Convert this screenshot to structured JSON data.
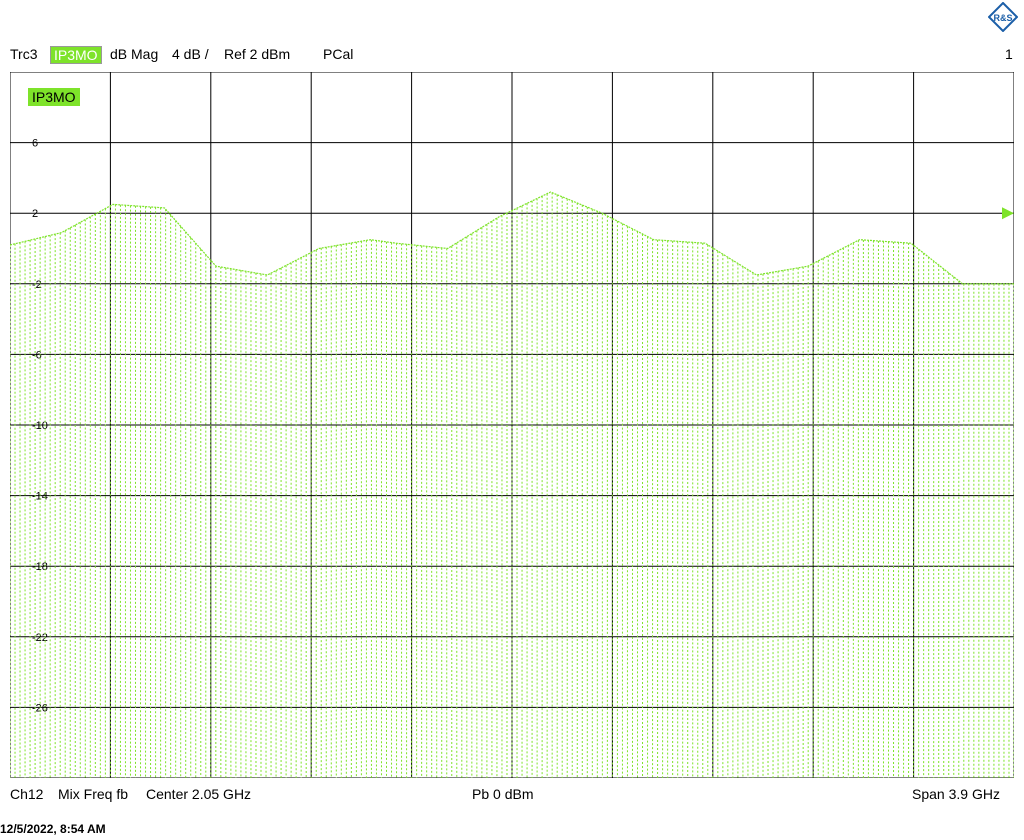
{
  "header": {
    "trace": "Trc3",
    "trace_name": "IP3MO",
    "format": "dB Mag",
    "scale": "4 dB /",
    "ref": "Ref 2 dBm",
    "cal": "PCal",
    "channel_index": "1"
  },
  "plot": {
    "trace_label": "IP3MO"
  },
  "footer": {
    "channel": "Ch12",
    "sweep": "Mix Freq fb",
    "center": "Center  2.05 GHz",
    "power": "Pb   0 dBm",
    "span": "Span  3.9 GHz"
  },
  "timestamp": "12/5/2022, 8:54 AM",
  "colors": {
    "trace": "#7ee32a",
    "grid": "#000000",
    "background": "#ffffff"
  },
  "chart_data": {
    "type": "line",
    "xlabel": "",
    "ylabel": "",
    "xlim": [
      0.1,
      4.0
    ],
    "ylim": [
      -30,
      10
    ],
    "y_ticks": [
      6,
      2,
      -2,
      -6,
      -10,
      -14,
      -18,
      -22,
      -26
    ],
    "ref_level": 2,
    "series": [
      {
        "x": [
          0.1,
          0.3,
          0.5,
          0.7,
          0.9,
          1.1,
          1.3,
          1.5,
          1.6,
          1.8,
          2.0,
          2.2,
          2.4,
          2.6,
          2.8,
          3.0,
          3.2,
          3.4,
          3.6,
          3.8,
          4.0
        ],
        "values": [
          0.2,
          0.9,
          2.5,
          2.3,
          -1.0,
          -1.5,
          0.0,
          0.5,
          0.3,
          0.0,
          1.8,
          3.2,
          2.0,
          0.5,
          0.3,
          -1.5,
          -1.0,
          0.5,
          0.3,
          -2.0,
          -2.0
        ]
      }
    ]
  }
}
